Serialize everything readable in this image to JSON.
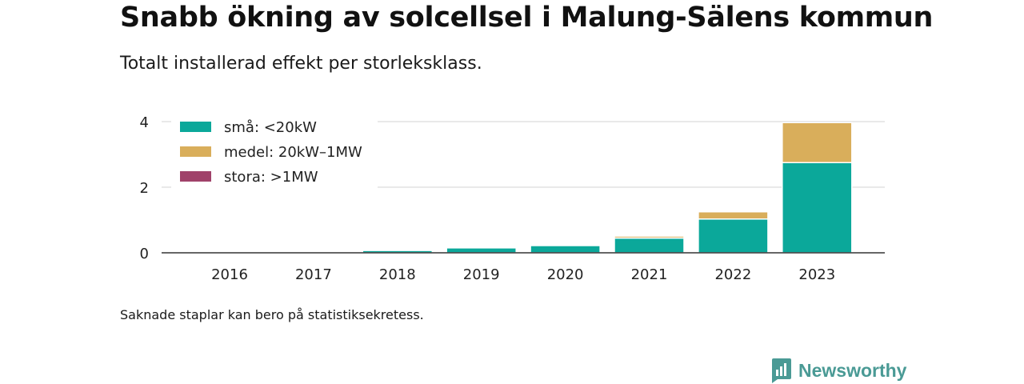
{
  "header": {
    "title": "Snabb ökning av solcellsel i Malung-Sälens kommun",
    "subtitle": "Totalt installerad effekt per storleksklass."
  },
  "footer": {
    "note": "Saknade staplar kan bero på statistiksekretess.",
    "brand": "Newsworthy"
  },
  "colors": {
    "small": "#0ba89a",
    "medium": "#d9ae5b",
    "large": "#a0426a",
    "brand": "#4a9a95"
  },
  "chart_data": {
    "type": "bar",
    "stacked": true,
    "categories": [
      "2016",
      "2017",
      "2018",
      "2019",
      "2020",
      "2021",
      "2022",
      "2023"
    ],
    "series": [
      {
        "name": "små: <20kW",
        "values": [
          0,
          0,
          0.07,
          0.15,
          0.22,
          0.45,
          1.03,
          2.75
        ]
      },
      {
        "name": "medel: 20kW–1MW",
        "values": [
          0,
          0,
          0,
          0,
          0,
          0.06,
          0.22,
          1.22
        ]
      },
      {
        "name": "stora: >1MW",
        "values": [
          0,
          0,
          0,
          0,
          0,
          0,
          0,
          0
        ]
      }
    ],
    "yticks": [
      "0",
      "2",
      "4"
    ],
    "ylim": [
      0,
      4
    ],
    "grid": true,
    "legend": "top-left"
  }
}
